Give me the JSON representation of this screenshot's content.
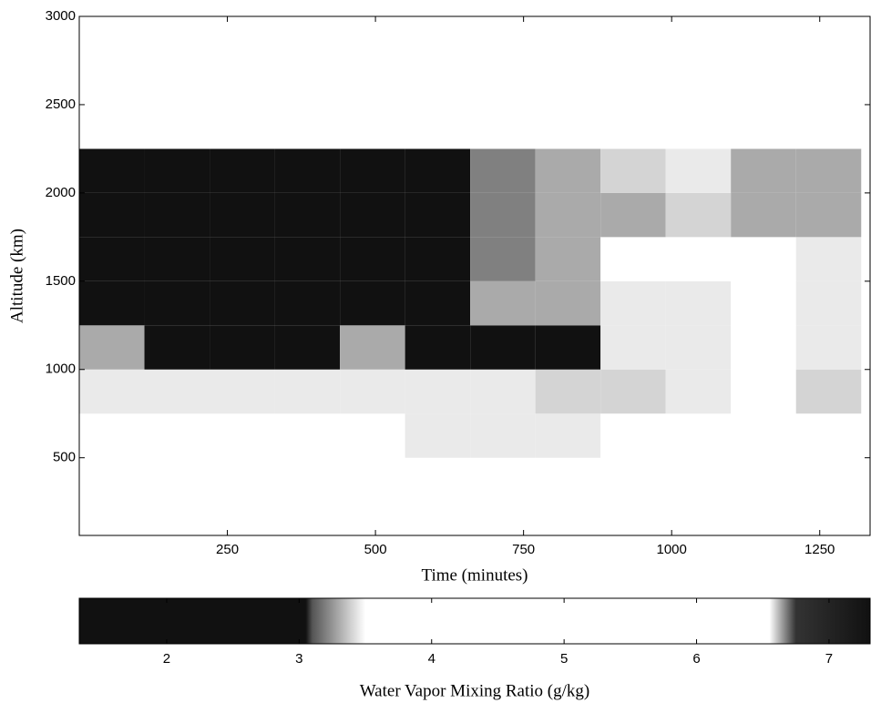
{
  "chart_data": {
    "type": "heatmap",
    "x_label": "Time (minutes)",
    "y_label": "Altitude (km)",
    "xlim": [
      0,
      1335
    ],
    "ylim": [
      60,
      3000
    ],
    "xticks": [
      250,
      500,
      750,
      1000,
      1250
    ],
    "yticks": [
      500,
      1000,
      1500,
      2000,
      2500,
      3000
    ],
    "x_edges": [
      0,
      110,
      220,
      330,
      440,
      550,
      660,
      770,
      880,
      990,
      1100,
      1210,
      1320
    ],
    "y_edges": [
      500,
      750,
      1000,
      1250,
      1500,
      1750,
      2000,
      2250,
      2500,
      2750,
      3000
    ],
    "z": [
      [
        5,
        5,
        5,
        5,
        5,
        3.45,
        3.45,
        3.45,
        5,
        5,
        5,
        5
      ],
      [
        3.45,
        3.45,
        3.45,
        3.45,
        3.45,
        3.45,
        3.45,
        3.4,
        3.4,
        3.45,
        5,
        3.4
      ],
      [
        3.3,
        2.8,
        2.6,
        2.4,
        3.3,
        2.6,
        2.2,
        2.8,
        3.45,
        3.45,
        5,
        3.45
      ],
      [
        2,
        2.2,
        2.6,
        2,
        2.2,
        2.4,
        3.3,
        3.3,
        3.45,
        3.45,
        5,
        3.45
      ],
      [
        2,
        2,
        2.2,
        2,
        2,
        2.6,
        3.2,
        3.3,
        5,
        5,
        5,
        3.45
      ],
      [
        2,
        2,
        2,
        2,
        2,
        2.8,
        3.2,
        3.3,
        3.3,
        3.4,
        3.3,
        3.3
      ],
      [
        2,
        2,
        2,
        2,
        2.4,
        2.8,
        3.2,
        3.3,
        3.4,
        3.45,
        3.3,
        3.3
      ],
      [
        5,
        5,
        5,
        5,
        5,
        5,
        5,
        5,
        5,
        5,
        5,
        5
      ],
      [
        5,
        5,
        5,
        5,
        5,
        5,
        5,
        5,
        5,
        5,
        5,
        5
      ],
      [
        5,
        5,
        5,
        5,
        5,
        5,
        5,
        5,
        5,
        5,
        5,
        5
      ]
    ],
    "colorbar": {
      "label": "Water Vapor Mixing Ratio (g/kg)",
      "clim": [
        1.34,
        7.31
      ],
      "ticks": [
        2,
        3,
        4,
        5,
        6,
        7
      ],
      "colormap": [
        {
          "value": 1.34,
          "color": "#111111"
        },
        {
          "value": 3.05,
          "color": "#111111"
        },
        {
          "value": 3.1,
          "color": "#555555"
        },
        {
          "value": 3.5,
          "color": "#ffffff"
        },
        {
          "value": 6.55,
          "color": "#ffffff"
        },
        {
          "value": 6.75,
          "color": "#333333"
        },
        {
          "value": 7.31,
          "color": "#111111"
        }
      ]
    }
  }
}
